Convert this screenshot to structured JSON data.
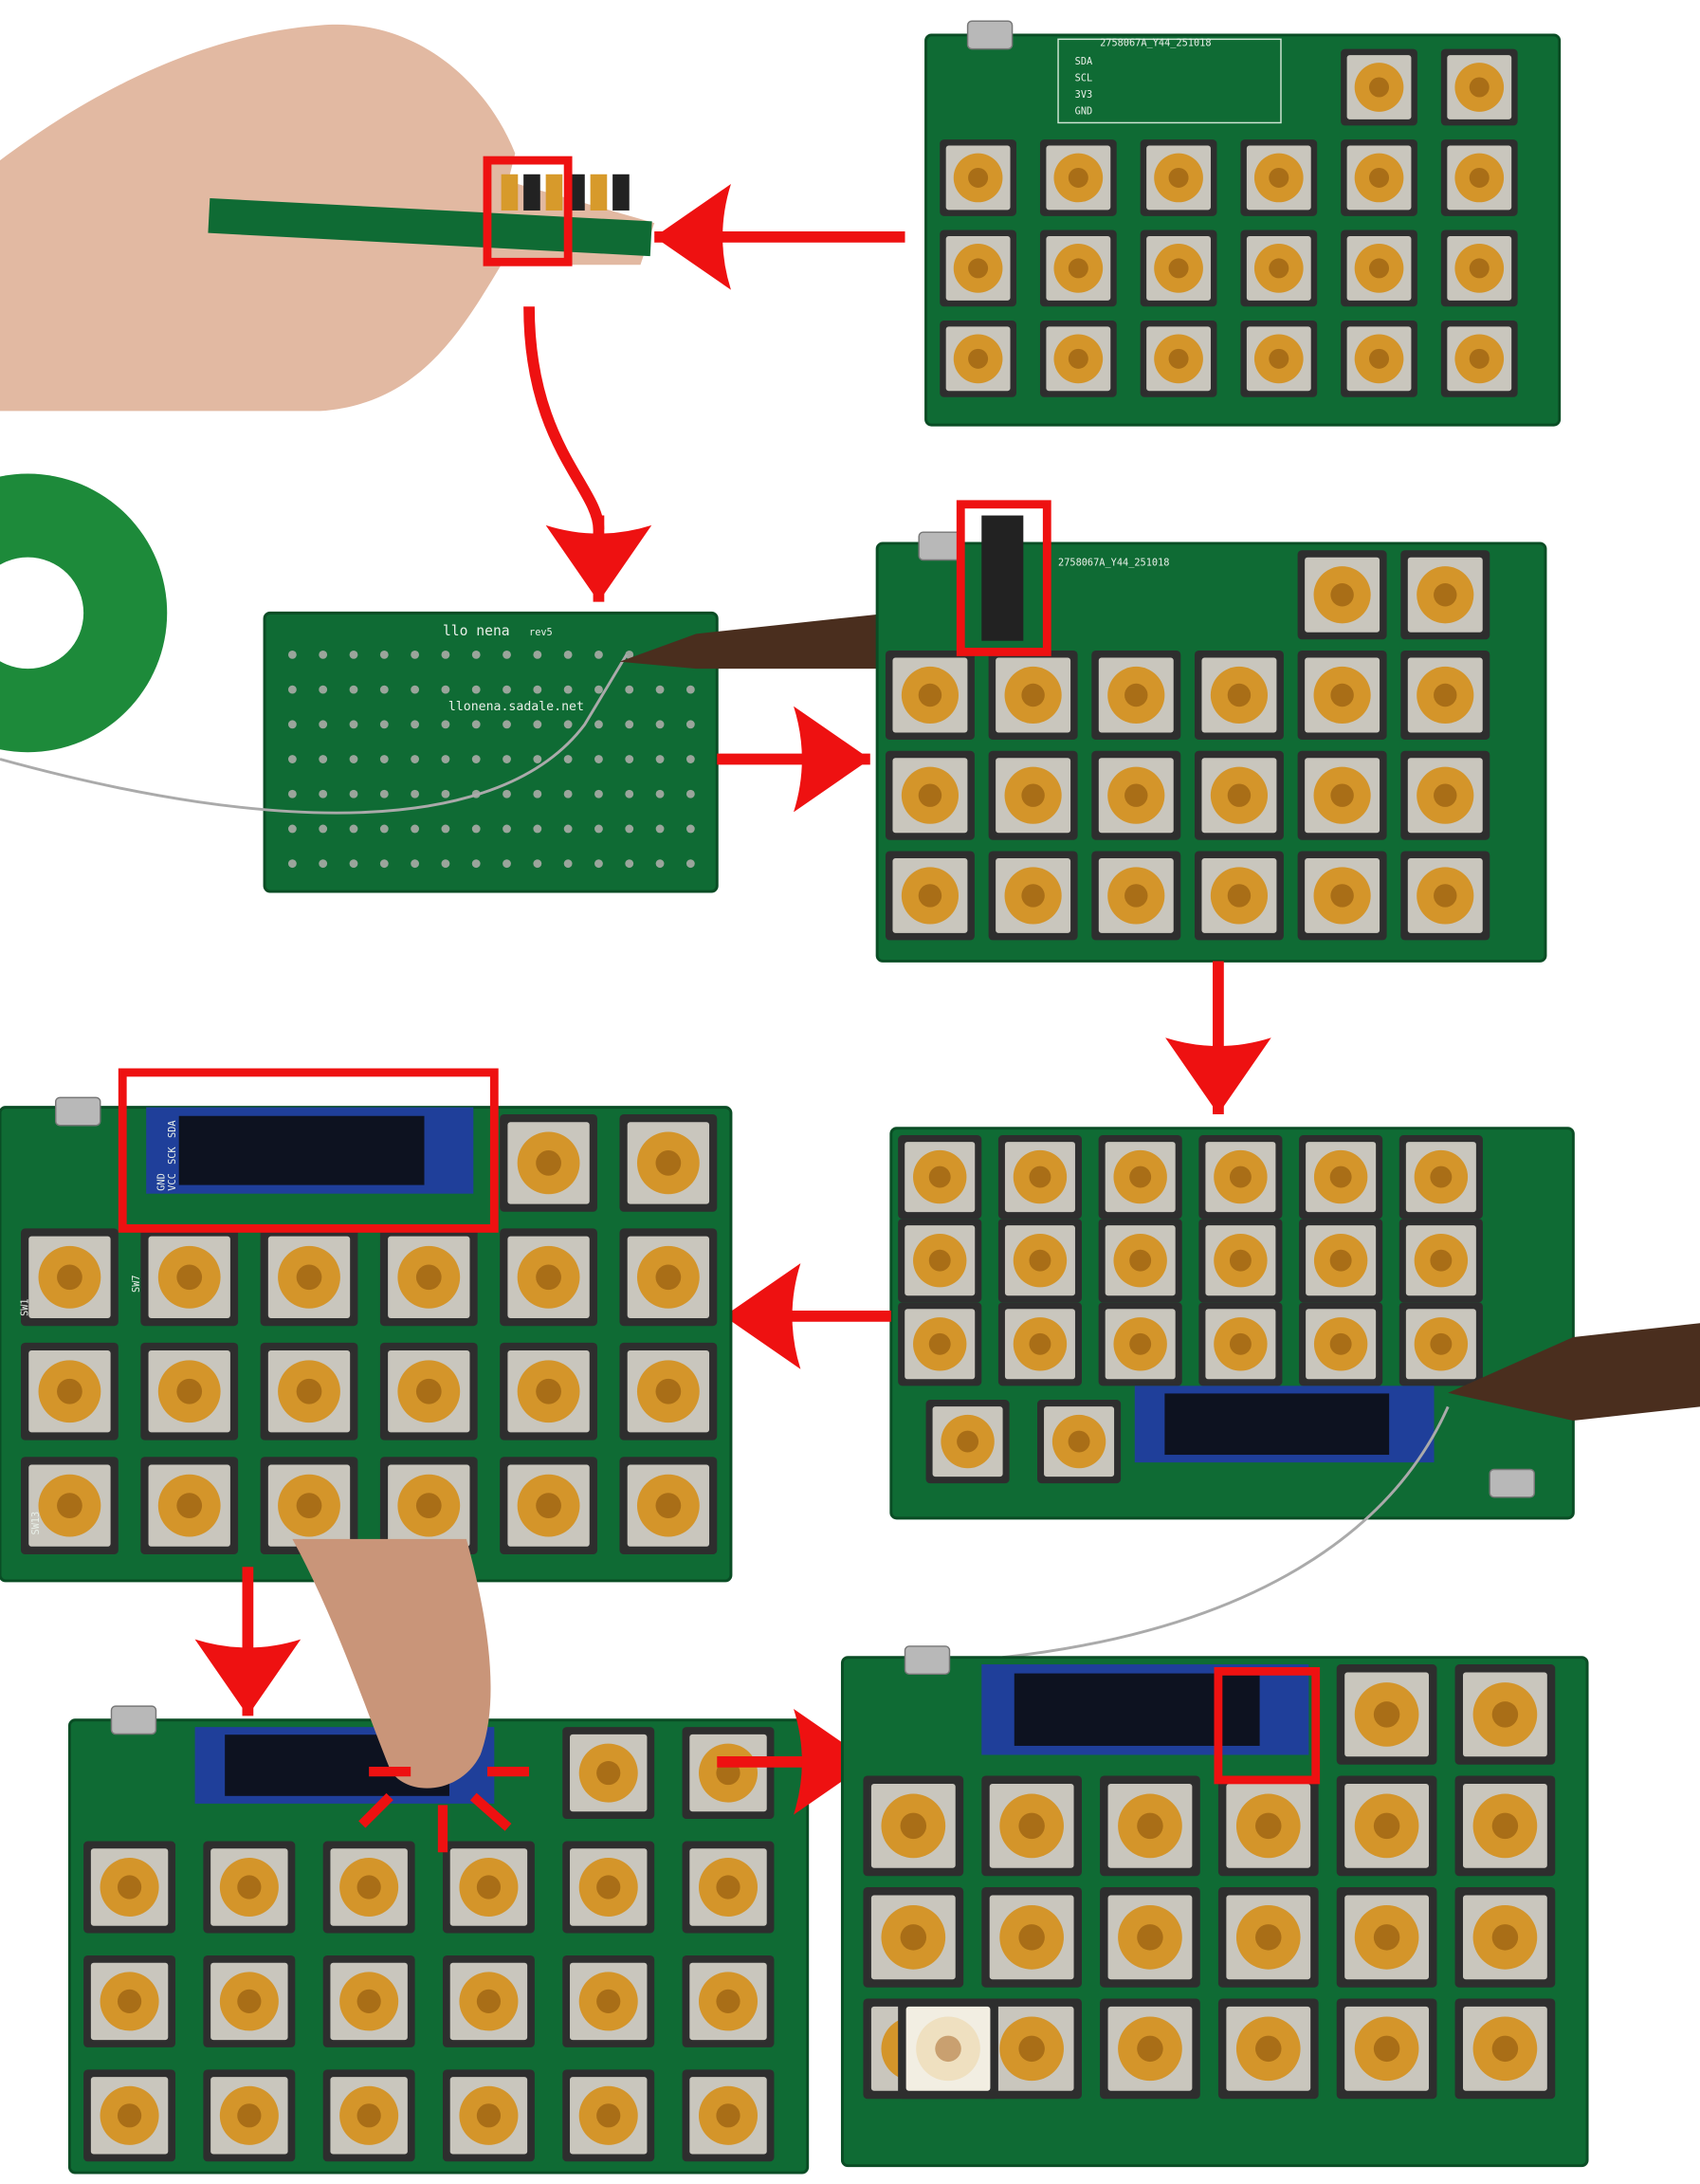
{
  "board_top": {
    "id": "2758067A_Y44_251018",
    "pins": [
      "SDA",
      "SCL",
      "3V3",
      "GND"
    ]
  },
  "board_back": {
    "name": "llo nena",
    "rev": "rev5",
    "url": "llonena.sadale.net"
  },
  "oled_pins": [
    "GND",
    "VCC",
    "SCK",
    "SDA"
  ],
  "switch_labels": [
    "SW1",
    "SW7",
    "SW13"
  ]
}
